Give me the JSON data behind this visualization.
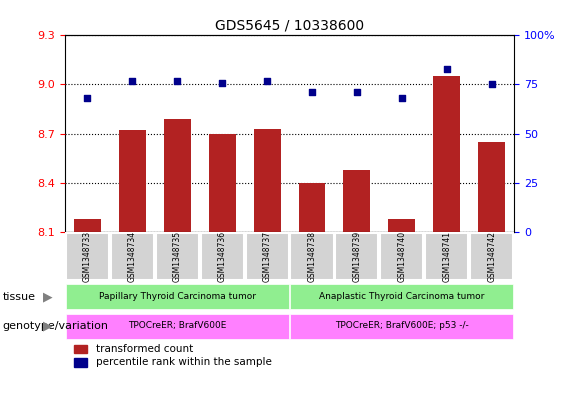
{
  "title": "GDS5645 / 10338600",
  "samples": [
    "GSM1348733",
    "GSM1348734",
    "GSM1348735",
    "GSM1348736",
    "GSM1348737",
    "GSM1348738",
    "GSM1348739",
    "GSM1348740",
    "GSM1348741",
    "GSM1348742"
  ],
  "transformed_count": [
    8.18,
    8.72,
    8.79,
    8.7,
    8.73,
    8.4,
    8.48,
    8.18,
    9.05,
    8.65
  ],
  "percentile_rank": [
    68,
    77,
    77,
    76,
    77,
    71,
    71,
    68,
    83,
    75
  ],
  "ylim_left": [
    8.1,
    9.3
  ],
  "ylim_right": [
    0,
    100
  ],
  "yticks_left": [
    8.1,
    8.4,
    8.7,
    9.0,
    9.3
  ],
  "yticks_right": [
    0,
    25,
    50,
    75,
    100
  ],
  "bar_color": "#b22222",
  "scatter_color": "#00008b",
  "tissue_group1": "Papillary Thyroid Carcinoma tumor",
  "tissue_group2": "Anaplastic Thyroid Carcinoma tumor",
  "genotype_group1": "TPOCreER; BrafV600E",
  "genotype_group2": "TPOCreER; BrafV600E; p53 -/-",
  "tissue_color": "#90ee90",
  "genotype_color": "#ff80ff",
  "sample_bg_color": "#d3d3d3",
  "group1_samples": 5,
  "group2_samples": 5,
  "tissue_label": "tissue",
  "genotype_label": "genotype/variation",
  "legend1": "transformed count",
  "legend2": "percentile rank within the sample"
}
